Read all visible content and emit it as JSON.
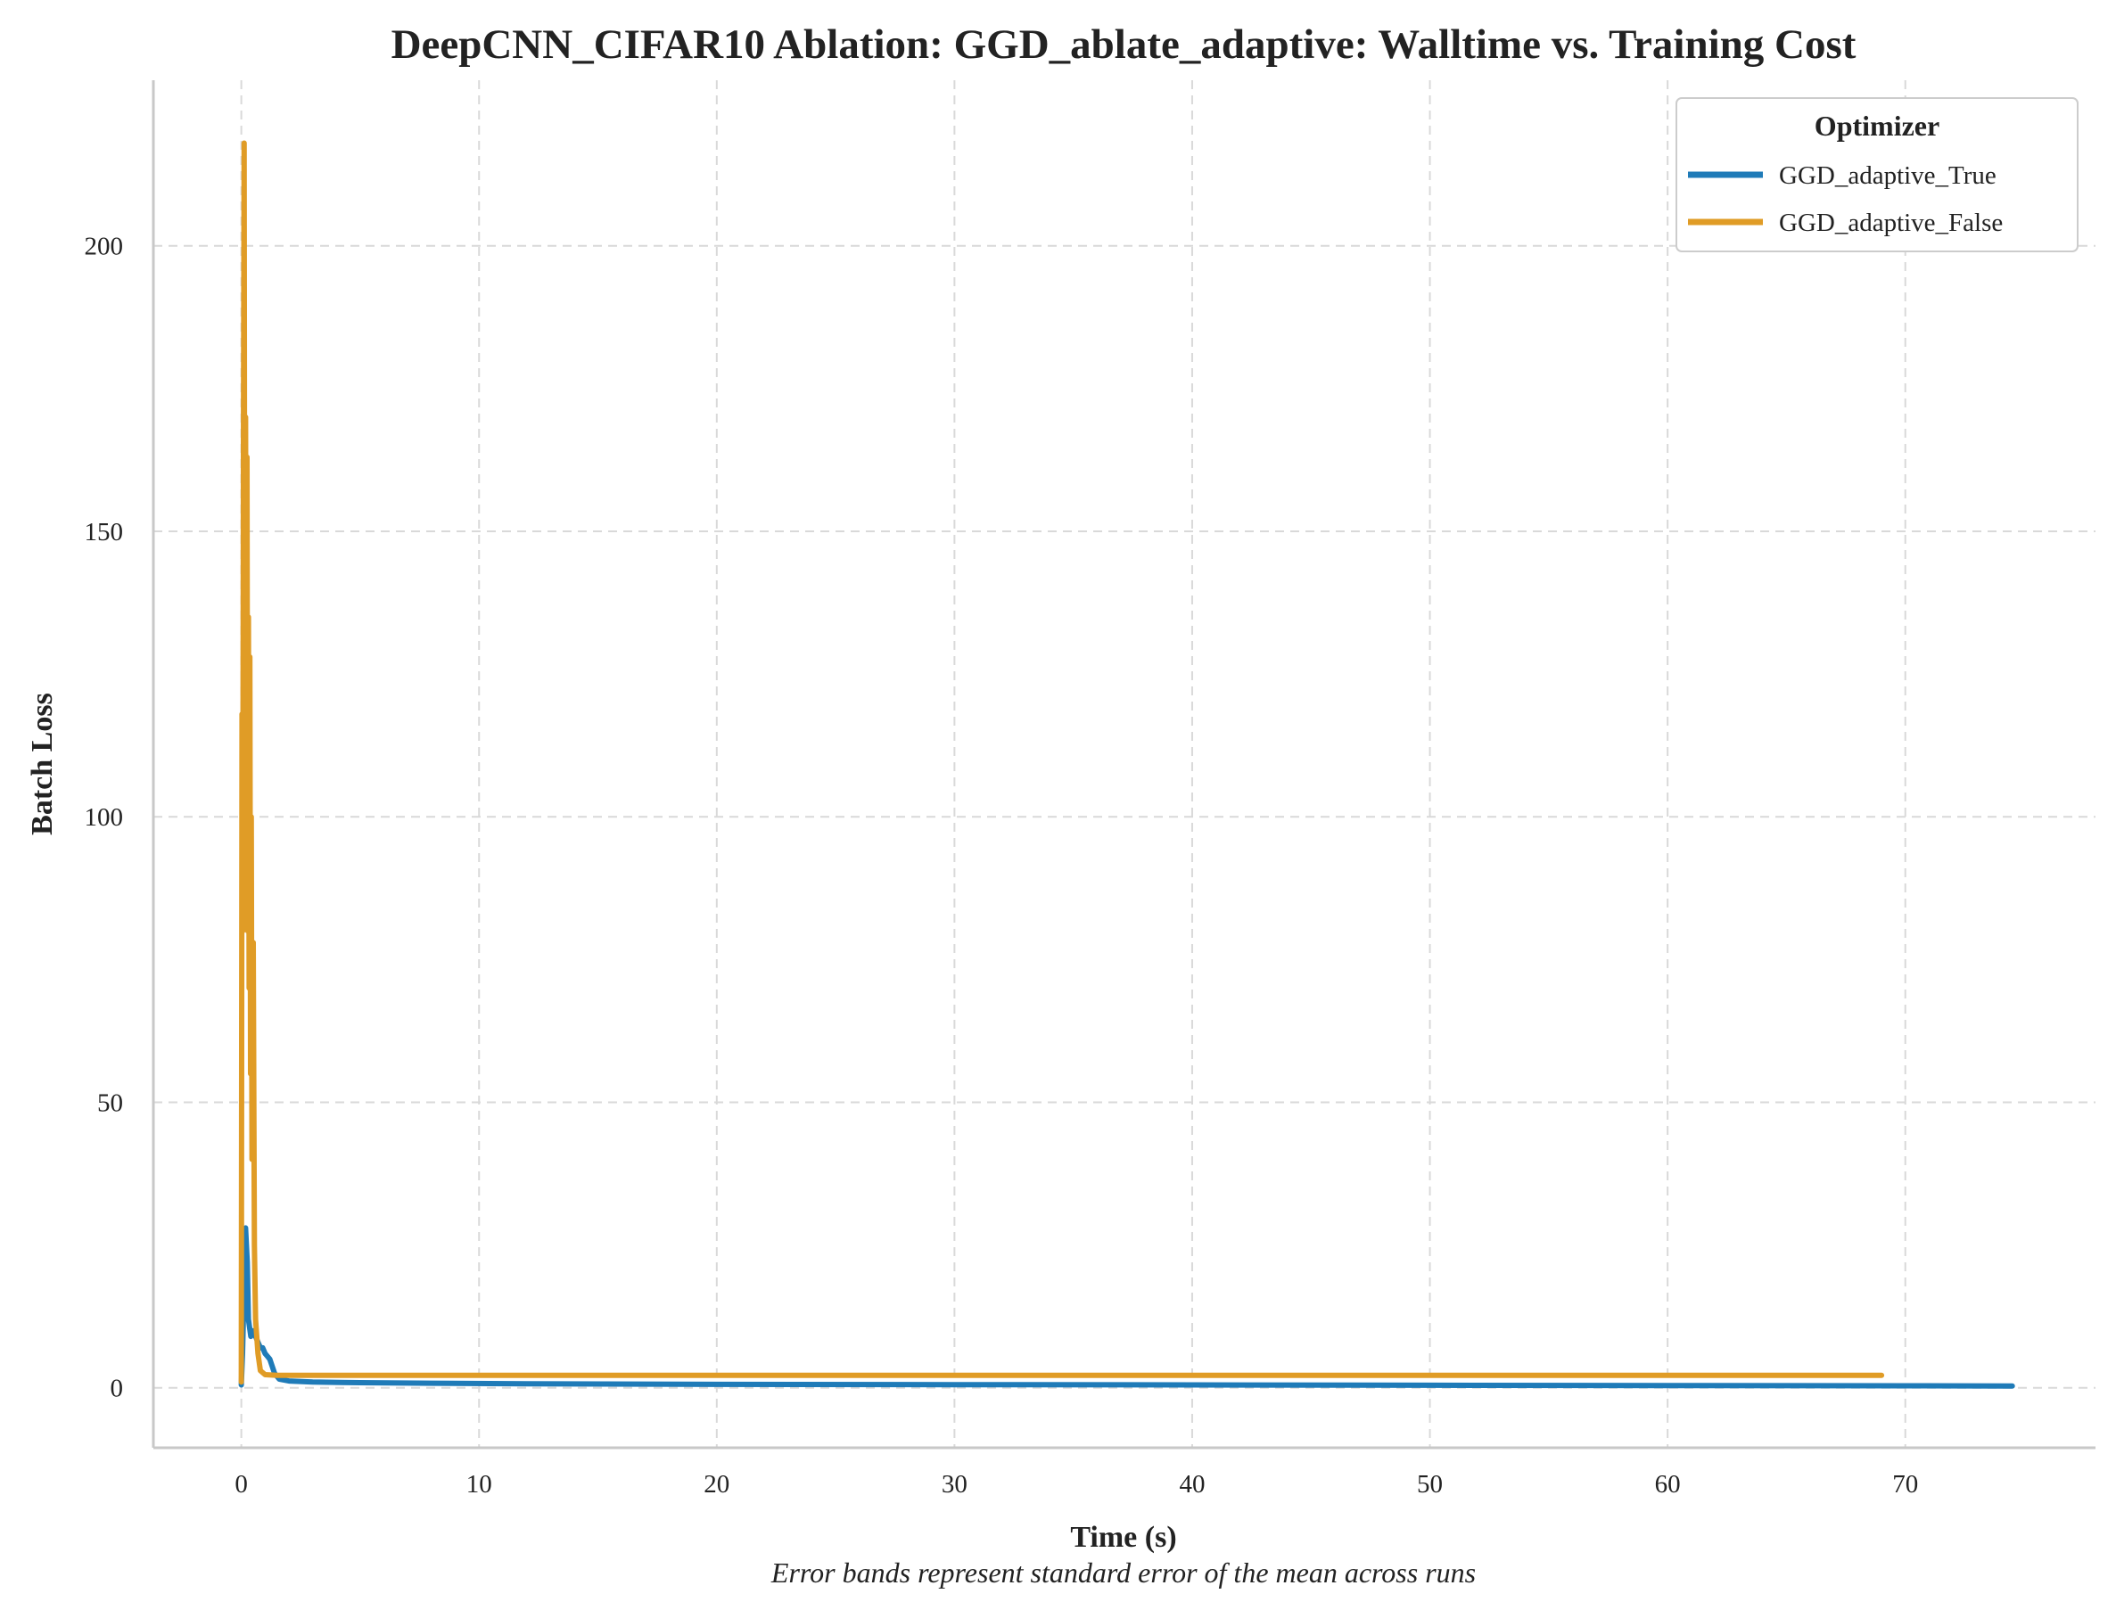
{
  "chart_data": {
    "type": "line",
    "title": "DeepCNN_CIFAR10 Ablation: GGD_ablate_adaptive: Walltime vs. Training Cost",
    "xlabel": "Time (s)",
    "ylabel": "Batch Loss",
    "footnote": "Error bands represent standard error of the mean across runs",
    "xlim": [
      -3.7,
      78
    ],
    "ylim": [
      -10.5,
      229
    ],
    "xticks": [
      0,
      10,
      20,
      30,
      40,
      50,
      60,
      70
    ],
    "yticks": [
      0,
      50,
      100,
      150,
      200
    ],
    "grid": true,
    "legend": {
      "title": "Optimizer",
      "position": "top-right"
    },
    "series": [
      {
        "name": "GGD_adaptive_True",
        "color": "#1f7bb8",
        "x": [
          0,
          0.05,
          0.12,
          0.18,
          0.25,
          0.3,
          0.4,
          0.5,
          0.6,
          0.7,
          0.8,
          0.9,
          1.0,
          1.1,
          1.2,
          1.4,
          1.6,
          2.0,
          3,
          5,
          8,
          12,
          20,
          30,
          40,
          50,
          60,
          70,
          74.5
        ],
        "y": [
          0.5,
          6,
          18,
          28,
          22,
          12,
          9,
          10,
          9,
          8,
          7,
          7,
          6,
          5.5,
          5,
          2.5,
          1.5,
          1.2,
          1.0,
          0.9,
          0.8,
          0.7,
          0.6,
          0.55,
          0.5,
          0.45,
          0.4,
          0.35,
          0.3
        ]
      },
      {
        "name": "GGD_adaptive_False",
        "color": "#e09c26",
        "x": [
          0,
          0.03,
          0.06,
          0.09,
          0.12,
          0.15,
          0.18,
          0.21,
          0.24,
          0.27,
          0.3,
          0.33,
          0.36,
          0.39,
          0.42,
          0.45,
          0.5,
          0.55,
          0.6,
          0.7,
          0.8,
          1.0,
          1.5,
          2,
          5,
          10,
          20,
          30,
          40,
          50,
          60,
          69
        ],
        "y": [
          1,
          118,
          80,
          165,
          218,
          100,
          170,
          90,
          163,
          80,
          135,
          70,
          128,
          55,
          100,
          40,
          78,
          25,
          12,
          6,
          3,
          2.3,
          2.2,
          2.2,
          2.2,
          2.2,
          2.2,
          2.2,
          2.2,
          2.2,
          2.2,
          2.2
        ]
      }
    ]
  }
}
